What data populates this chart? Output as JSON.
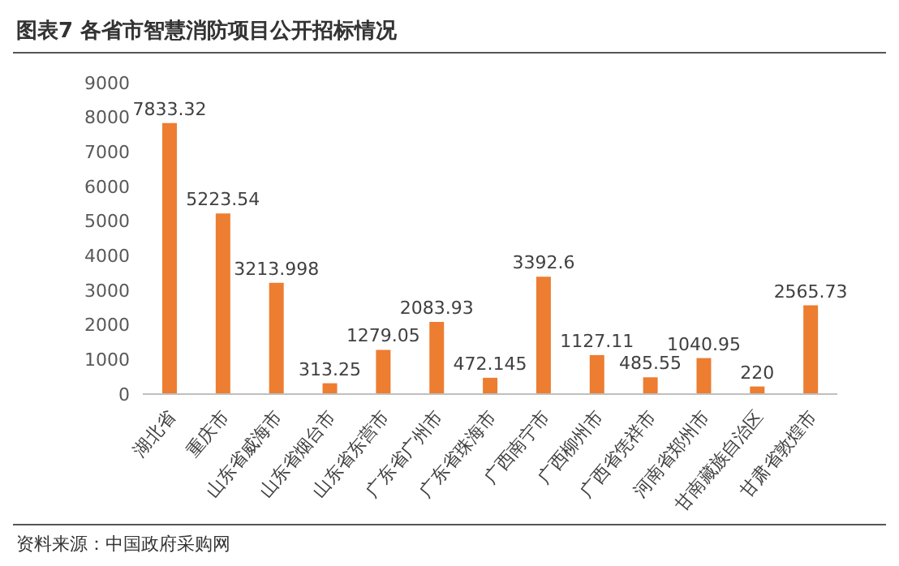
{
  "chart_data": {
    "type": "bar",
    "title": "图表7 各省市智慧消防项目公开招标情况",
    "categories": [
      "湖北省",
      "重庆市",
      "山东省威海市",
      "山东省烟台市",
      "山东省东营市",
      "广东省广州市",
      "广东省珠海市",
      "广西南宁市",
      "广西柳州市",
      "广西省凭祥市",
      "河南省郑州市",
      "甘南藏族自治区",
      "甘肃省敦煌市"
    ],
    "values": [
      7833.32,
      5223.54,
      3213.998,
      313.25,
      1279.05,
      2083.93,
      472.145,
      3392.6,
      1127.11,
      485.55,
      1040.95,
      220,
      2565.73
    ],
    "color": "#ed7d31",
    "ylim": [
      0,
      9000
    ],
    "yticks": [
      0,
      1000,
      2000,
      3000,
      4000,
      5000,
      6000,
      7000,
      8000,
      9000
    ],
    "grid": false,
    "data_labels": true,
    "annotations": [
      "资料来源：中国政府采购网"
    ]
  }
}
